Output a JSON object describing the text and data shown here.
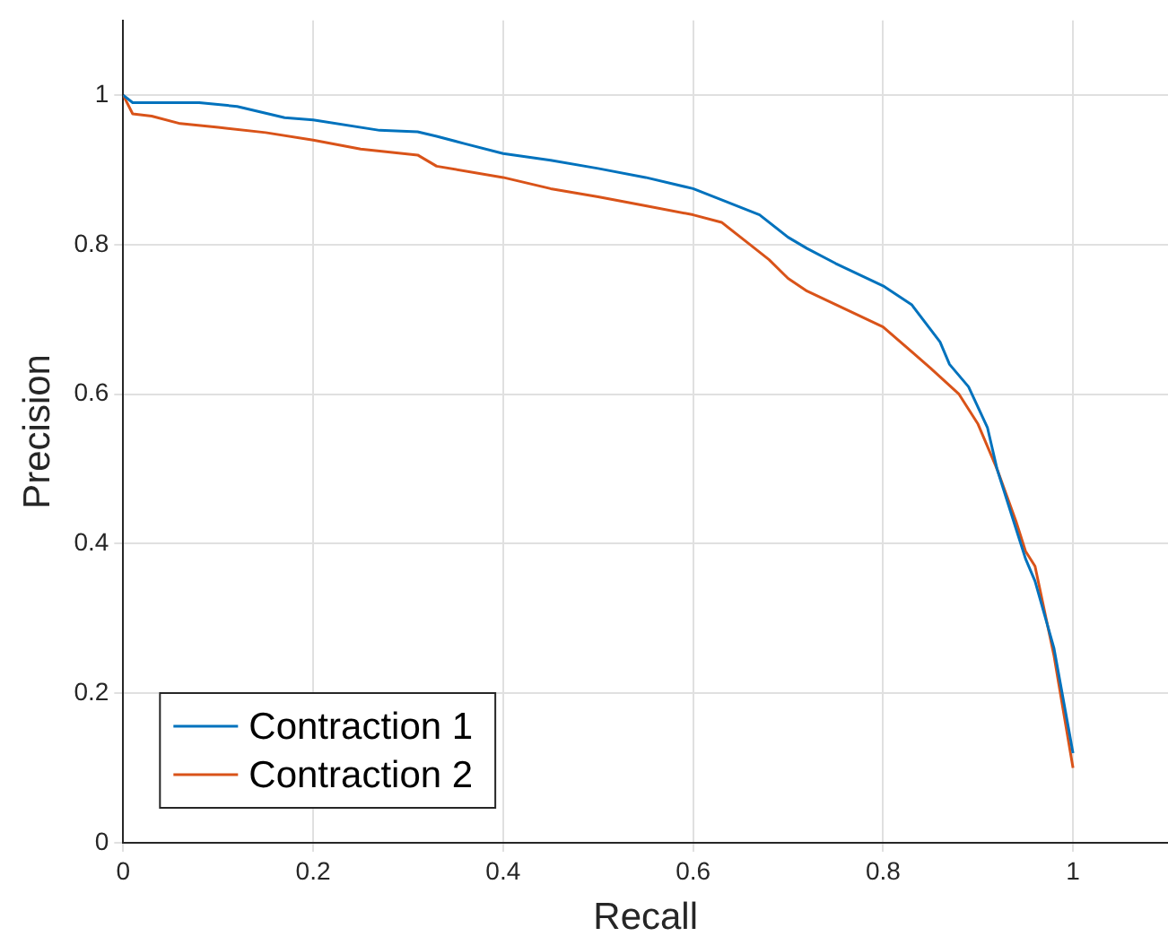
{
  "chart_data": {
    "type": "line",
    "xlabel": "Recall",
    "ylabel": "Precision",
    "xlim": [
      0,
      1.1
    ],
    "ylim": [
      0,
      1.1
    ],
    "xticks": [
      0,
      0.2,
      0.4,
      0.6,
      0.8,
      1
    ],
    "yticks": [
      0,
      0.2,
      0.4,
      0.6,
      0.8,
      1
    ],
    "grid": true,
    "legend": "bottom left",
    "marker": "none",
    "line_style": "solid",
    "series": [
      {
        "name": "Contraction 1",
        "color": "#0072bd",
        "x": [
          0,
          0.01,
          0.08,
          0.12,
          0.17,
          0.2,
          0.27,
          0.31,
          0.33,
          0.36,
          0.4,
          0.45,
          0.5,
          0.55,
          0.6,
          0.63,
          0.67,
          0.7,
          0.72,
          0.75,
          0.8,
          0.83,
          0.86,
          0.87,
          0.89,
          0.91,
          0.92,
          0.94,
          0.95,
          0.96,
          0.98,
          1.0
        ],
        "values": [
          1.0,
          0.99,
          0.99,
          0.985,
          0.97,
          0.967,
          0.953,
          0.951,
          0.945,
          0.935,
          0.922,
          0.913,
          0.902,
          0.89,
          0.875,
          0.86,
          0.84,
          0.81,
          0.795,
          0.775,
          0.745,
          0.72,
          0.67,
          0.64,
          0.61,
          0.555,
          0.5,
          0.42,
          0.38,
          0.35,
          0.26,
          0.12
        ]
      },
      {
        "name": "Contraction 2",
        "color": "#d95319",
        "x": [
          0,
          0.01,
          0.03,
          0.06,
          0.1,
          0.15,
          0.2,
          0.25,
          0.31,
          0.33,
          0.4,
          0.45,
          0.5,
          0.55,
          0.6,
          0.63,
          0.66,
          0.68,
          0.7,
          0.72,
          0.75,
          0.8,
          0.85,
          0.88,
          0.9,
          0.92,
          0.94,
          0.95,
          0.96,
          0.98,
          1.0
        ],
        "values": [
          1.0,
          0.975,
          0.972,
          0.962,
          0.957,
          0.95,
          0.94,
          0.928,
          0.92,
          0.905,
          0.89,
          0.875,
          0.864,
          0.852,
          0.84,
          0.83,
          0.8,
          0.78,
          0.755,
          0.738,
          0.72,
          0.69,
          0.635,
          0.6,
          0.56,
          0.5,
          0.43,
          0.39,
          0.37,
          0.25,
          0.1
        ]
      }
    ]
  }
}
